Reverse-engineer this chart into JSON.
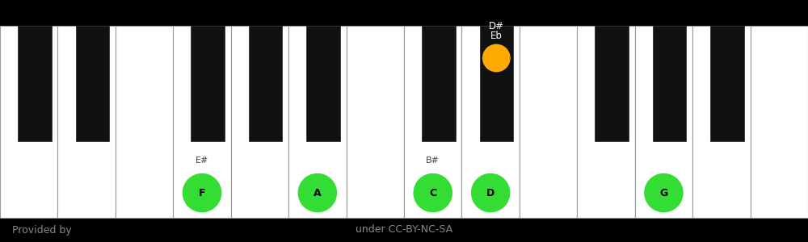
{
  "bg_color": "#000000",
  "white_key_color": "#ffffff",
  "black_key_color": "#111111",
  "white_key_border": "#999999",
  "footer_text_color": "#888888",
  "footer_left": "Provided by",
  "footer_right": "under CC-BY-NC-SA",
  "num_white_keys": 14,
  "white_notes": [
    "C",
    "D",
    "E",
    "F",
    "G",
    "A",
    "B",
    "C",
    "D",
    "E",
    "F",
    "G",
    "A",
    "B"
  ],
  "black_key_positions": [
    0.55,
    1.55,
    3.55,
    4.55,
    5.55,
    7.55,
    8.55,
    10.55,
    11.55,
    12.55
  ],
  "highlighted_white": [
    {
      "key_index": 3,
      "label": "F",
      "alt_label": "E#",
      "color": "#33dd33"
    },
    {
      "key_index": 5,
      "label": "A",
      "alt_label": "",
      "color": "#33dd33"
    },
    {
      "key_index": 7,
      "label": "C",
      "alt_label": "B#",
      "color": "#33dd33"
    },
    {
      "key_index": 8,
      "label": "D",
      "alt_label": "",
      "color": "#33dd33"
    },
    {
      "key_index": 11,
      "label": "G",
      "alt_label": "",
      "color": "#33dd33"
    }
  ],
  "highlighted_black": [
    {
      "bk_index": 6,
      "label1": "D#",
      "label2": "Eb",
      "color": "#ffaa00"
    }
  ]
}
